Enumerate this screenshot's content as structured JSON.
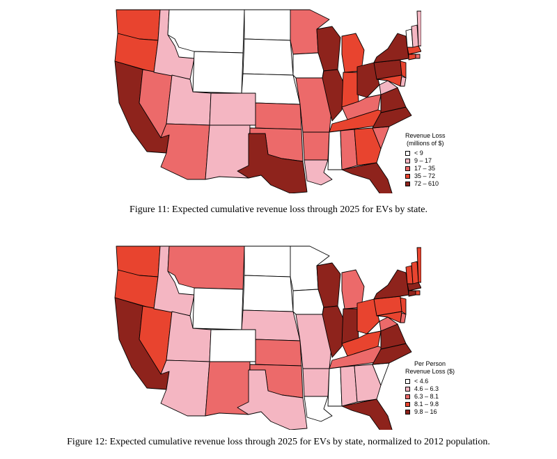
{
  "colors": [
    "#ffffff",
    "#f4b6c2",
    "#ec6a6a",
    "#e8442f",
    "#8e231c"
  ],
  "figures": [
    {
      "caption": "Figure 11: Expected cumulative revenue loss through 2025 for EVs by state.",
      "legend": {
        "title_line1": "Revenue Loss",
        "title_line2": "(millions of $)",
        "entries": [
          "< 9",
          "9  –  17",
          "17  –  35",
          "35  –  72",
          "72  –  610"
        ]
      },
      "states": {
        "WA": 3,
        "OR": 3,
        "CA": 4,
        "NV": 2,
        "ID": 1,
        "MT": 0,
        "WY": 0,
        "UT": 1,
        "CO": 1,
        "AZ": 2,
        "NM": 1,
        "ND": 0,
        "SD": 0,
        "NE": 0,
        "KS": 2,
        "OK": 2,
        "TX": 4,
        "MN": 2,
        "IA": 0,
        "MO": 2,
        "AR": 2,
        "LA": 1,
        "WI": 4,
        "IL": 4,
        "MI": 3,
        "IN": 3,
        "OH": 4,
        "KY": 2,
        "TN": 3,
        "MS": 0,
        "AL": 2,
        "GA": 3,
        "FL": 4,
        "SC": 2,
        "NC": 4,
        "VA": 4,
        "WV": 1,
        "PA": 4,
        "NY": 4,
        "NJ": 3,
        "MD": 3,
        "DE": 1,
        "CT": 3,
        "RI": 2,
        "MA": 3,
        "VT": 0,
        "NH": 1,
        "ME": 1
      }
    },
    {
      "caption": "Figure 12: Expected cumulative revenue loss through 2025 for EVs by state, normalized to 2012 population.",
      "legend": {
        "title_line1": "Per Person",
        "title_line2": "Revenue Loss ($)",
        "entries": [
          "< 4.6",
          "4.6  –  6.3",
          "6.3  –  8.1",
          "8.1  –  9.8",
          "9.8  –  16"
        ]
      },
      "states": {
        "WA": 3,
        "OR": 3,
        "CA": 4,
        "NV": 3,
        "ID": 1,
        "MT": 2,
        "WY": 0,
        "UT": 1,
        "CO": 0,
        "AZ": 1,
        "NM": 2,
        "ND": 0,
        "SD": 0,
        "NE": 1,
        "KS": 2,
        "OK": 2,
        "TX": 1,
        "MN": 0,
        "IA": 0,
        "MO": 1,
        "AR": 1,
        "LA": 0,
        "WI": 4,
        "IL": 4,
        "MI": 2,
        "IN": 4,
        "OH": 3,
        "KY": 3,
        "TN": 2,
        "MS": 0,
        "AL": 1,
        "GA": 1,
        "FL": 4,
        "SC": 0,
        "NC": 4,
        "VA": 4,
        "WV": 2,
        "PA": 3,
        "NY": 4,
        "NJ": 3,
        "MD": 3,
        "DE": 2,
        "CT": 4,
        "RI": 3,
        "MA": 4,
        "VT": 3,
        "NH": 3,
        "ME": 3
      }
    }
  ]
}
